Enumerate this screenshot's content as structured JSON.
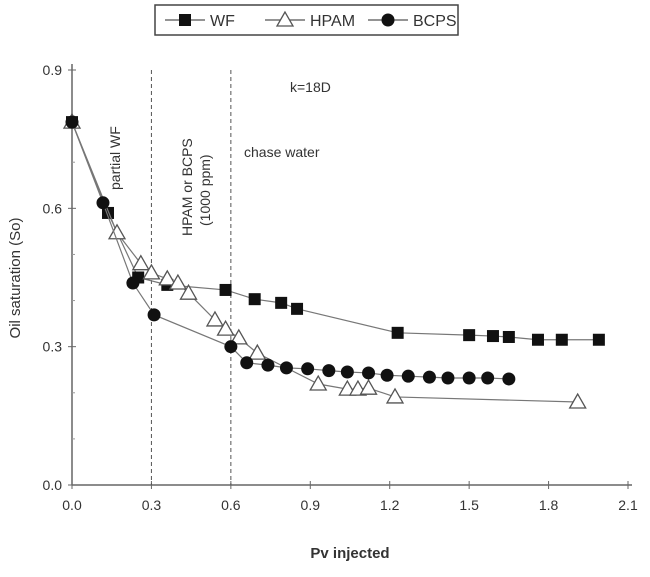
{
  "chart_data": {
    "type": "scatter",
    "title": "",
    "xlabel": "Pv injected",
    "ylabel": "Oil saturation (So)",
    "xlim": [
      0,
      2.1
    ],
    "ylim": [
      0,
      0.9
    ],
    "xticks": [
      "0.0",
      "0.3",
      "0.6",
      "0.9",
      "1.2",
      "1.5",
      "1.8",
      "2.1"
    ],
    "yticks": [
      "0.0",
      "0.3",
      "0.6",
      "0.9"
    ],
    "grid": false,
    "legend_position": "top",
    "vlines": [
      0.3,
      0.6
    ],
    "annotations": {
      "partial": "partial WF",
      "polymer_1": "HPAM or BCPS",
      "polymer_2": "(1000 ppm)",
      "chase": "chase water",
      "perm": "k=18D"
    },
    "series": [
      {
        "name": "WF",
        "marker": "square-filled",
        "color": "#111111",
        "x": [
          0,
          0.136,
          0.25,
          0.36,
          0.58,
          0.69,
          0.79,
          0.85,
          1.23,
          1.5,
          1.59,
          1.65,
          1.76,
          1.85,
          1.99
        ],
        "y": [
          0.787,
          0.59,
          0.45,
          0.434,
          0.423,
          0.403,
          0.395,
          0.382,
          0.33,
          0.325,
          0.323,
          0.321,
          0.315,
          0.315,
          0.315
        ]
      },
      {
        "name": "HPAM",
        "marker": "triangle-open",
        "color": "#555555",
        "x": [
          0,
          0.17,
          0.26,
          0.3,
          0.36,
          0.4,
          0.44,
          0.54,
          0.58,
          0.63,
          0.7,
          0.93,
          1.04,
          1.08,
          1.12,
          1.22,
          1.91
        ],
        "y": [
          0.787,
          0.547,
          0.48,
          0.46,
          0.447,
          0.438,
          0.416,
          0.358,
          0.338,
          0.319,
          0.286,
          0.219,
          0.208,
          0.208,
          0.21,
          0.191,
          0.18
        ]
      },
      {
        "name": "BCPS",
        "marker": "circle-filled",
        "color": "#111111",
        "x": [
          0,
          0.117,
          0.23,
          0.31,
          0.6,
          0.66,
          0.74,
          0.81,
          0.89,
          0.97,
          1.04,
          1.12,
          1.19,
          1.27,
          1.35,
          1.42,
          1.5,
          1.57,
          1.65
        ],
        "y": [
          0.787,
          0.612,
          0.438,
          0.369,
          0.3,
          0.265,
          0.26,
          0.254,
          0.252,
          0.248,
          0.245,
          0.243,
          0.238,
          0.236,
          0.234,
          0.232,
          0.232,
          0.232,
          0.23
        ]
      }
    ]
  }
}
